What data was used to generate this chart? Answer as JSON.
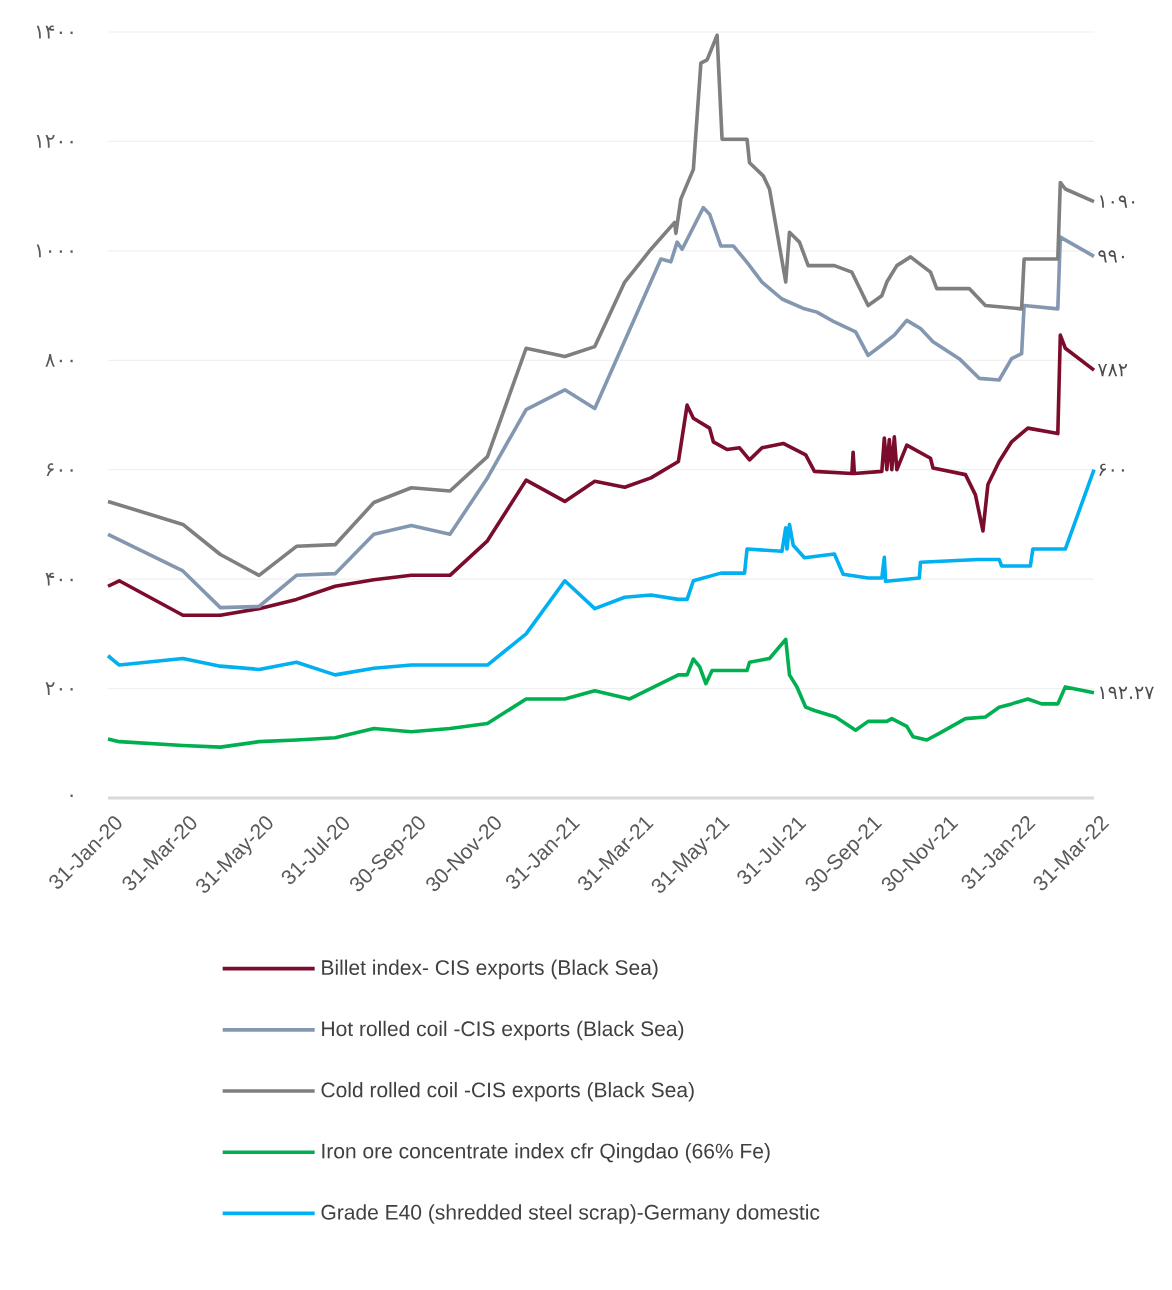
{
  "chart_data": {
    "type": "line",
    "xlim": [
      "2020-01-31",
      "2022-03-31"
    ],
    "ylim": [
      0,
      1400
    ],
    "xticks": [
      {
        "value": "2020-01-31",
        "label": "31-Jan-20"
      },
      {
        "value": "2020-03-31",
        "label": "31-Mar-20"
      },
      {
        "value": "2020-05-31",
        "label": "31-May-20"
      },
      {
        "value": "2020-07-31",
        "label": "31-Jul-20"
      },
      {
        "value": "2020-09-30",
        "label": "30-Sep-20"
      },
      {
        "value": "2020-11-30",
        "label": "30-Nov-20"
      },
      {
        "value": "2021-01-31",
        "label": "31-Jan-21"
      },
      {
        "value": "2021-03-31",
        "label": "31-Mar-21"
      },
      {
        "value": "2021-05-31",
        "label": "31-May-21"
      },
      {
        "value": "2021-07-31",
        "label": "31-Jul-21"
      },
      {
        "value": "2021-09-30",
        "label": "30-Sep-21"
      },
      {
        "value": "2021-11-30",
        "label": "30-Nov-21"
      },
      {
        "value": "2022-01-31",
        "label": "31-Jan-22"
      },
      {
        "value": "2022-03-31",
        "label": "31-Mar-22"
      }
    ],
    "yticks": [
      {
        "value": 0,
        "label": "۰"
      },
      {
        "value": 200,
        "label": "۲۰۰"
      },
      {
        "value": 400,
        "label": "۴۰۰"
      },
      {
        "value": 600,
        "label": "۶۰۰"
      },
      {
        "value": 800,
        "label": "۸۰۰"
      },
      {
        "value": 1000,
        "label": "۱۰۰۰"
      },
      {
        "value": 1200,
        "label": "۱۲۰۰"
      },
      {
        "value": 1400,
        "label": "۱۴۰۰"
      }
    ],
    "grid": "y",
    "legend": "bottom",
    "marker": "none",
    "line_style": "solid",
    "series": [
      {
        "name": "Billet index- CIS exports (Black Sea)",
        "color": "#7b0c2c",
        "x": [
          "2020-01-31",
          "2020-02-09",
          "2020-03-31",
          "2020-04-30",
          "2020-05-31",
          "2020-06-30",
          "2020-07-31",
          "2020-08-31",
          "2020-09-30",
          "2020-10-31",
          "2020-11-30",
          "2020-12-31",
          "2021-01-31",
          "2021-02-24",
          "2021-03-20",
          "2021-04-10",
          "2021-05-02",
          "2021-05-09",
          "2021-05-14",
          "2021-05-27",
          "2021-05-30",
          "2021-06-10",
          "2021-06-20",
          "2021-06-28",
          "2021-07-08",
          "2021-07-25",
          "2021-08-12",
          "2021-08-19",
          "2021-09-18",
          "2021-09-19",
          "2021-09-20",
          "2021-10-12",
          "2021-10-14",
          "2021-10-16",
          "2021-10-18",
          "2021-10-20",
          "2021-10-22",
          "2021-10-24",
          "2021-11-01",
          "2021-11-20",
          "2021-11-22",
          "2021-12-18",
          "2021-12-26",
          "2022-01-01",
          "2022-01-05",
          "2022-01-14",
          "2022-01-24",
          "2022-02-06",
          "2022-03-02",
          "2022-03-04",
          "2022-03-08",
          "2022-03-31"
        ],
        "values": [
          387,
          397,
          334,
          334,
          346,
          363,
          387,
          399,
          407,
          407,
          470,
          581,
          542,
          579,
          568,
          585,
          615,
          718,
          694,
          676,
          651,
          637,
          640,
          618,
          640,
          648,
          627,
          597,
          593,
          632,
          593,
          597,
          658,
          600,
          655,
          600,
          660,
          600,
          645,
          621,
          603,
          591,
          554,
          488,
          573,
          615,
          651,
          676,
          666,
          846,
          822,
          782
        ]
      },
      {
        "name": "Hot rolled coil -CIS exports (Black Sea)",
        "color": "#8497b0",
        "x": [
          "2020-01-31",
          "2020-03-31",
          "2020-04-30",
          "2020-05-31",
          "2020-06-30",
          "2020-07-31",
          "2020-08-31",
          "2020-09-30",
          "2020-10-31",
          "2020-11-30",
          "2020-12-31",
          "2021-01-31",
          "2021-02-24",
          "2021-04-18",
          "2021-04-26",
          "2021-05-01",
          "2021-05-05",
          "2021-05-22",
          "2021-05-27",
          "2021-06-05",
          "2021-06-15",
          "2021-06-26",
          "2021-07-08",
          "2021-07-24",
          "2021-08-11",
          "2021-08-21",
          "2021-09-04",
          "2021-09-21",
          "2021-10-01",
          "2021-10-12",
          "2021-10-22",
          "2021-11-01",
          "2021-11-12",
          "2021-11-22",
          "2021-12-13",
          "2021-12-29",
          "2022-01-14",
          "2022-01-24",
          "2022-02-01",
          "2022-02-03",
          "2022-03-02",
          "2022-03-04",
          "2022-03-31"
        ],
        "values": [
          482,
          415,
          348,
          350,
          407,
          410,
          482,
          498,
          482,
          585,
          710,
          746,
          712,
          985,
          980,
          1016,
          1003,
          1079,
          1067,
          1009,
          1009,
          979,
          943,
          912,
          894,
          888,
          870,
          852,
          809,
          828,
          846,
          873,
          858,
          834,
          803,
          767,
          764,
          803,
          812,
          900,
          894,
          1025,
          990
        ]
      },
      {
        "name": "Cold rolled coil -CIS exports (Black Sea)",
        "color": "#7f7f7f",
        "x": [
          "2020-01-31",
          "2020-03-31",
          "2020-04-30",
          "2020-05-31",
          "2020-06-30",
          "2020-07-31",
          "2020-08-31",
          "2020-09-30",
          "2020-10-31",
          "2020-11-30",
          "2020-12-31",
          "2021-01-31",
          "2021-02-24",
          "2021-03-20",
          "2021-04-10",
          "2021-04-29",
          "2021-04-30",
          "2021-05-04",
          "2021-05-14",
          "2021-05-20",
          "2021-05-25",
          "2021-06-02",
          "2021-06-06",
          "2021-06-26",
          "2021-06-28",
          "2021-07-09",
          "2021-07-14",
          "2021-07-27",
          "2021-07-30",
          "2021-08-07",
          "2021-08-14",
          "2021-09-04",
          "2021-09-18",
          "2021-10-01",
          "2021-10-12",
          "2021-10-16",
          "2021-10-24",
          "2021-11-04",
          "2021-11-20",
          "2021-11-25",
          "2021-12-21",
          "2022-01-03",
          "2022-02-01",
          "2022-02-03",
          "2022-03-02",
          "2022-03-04",
          "2022-03-08",
          "2022-03-31"
        ],
        "values": [
          542,
          500,
          445,
          407,
          460,
          463,
          540,
          567,
          561,
          624,
          822,
          807,
          825,
          943,
          1003,
          1052,
          1032,
          1095,
          1149,
          1343,
          1349,
          1394,
          1204,
          1204,
          1161,
          1137,
          1113,
          943,
          1034,
          1016,
          973,
          973,
          961,
          900,
          918,
          943,
          973,
          989,
          961,
          931,
          931,
          900,
          894,
          985,
          985,
          1125,
          1113,
          1090
        ]
      },
      {
        "name": "Iron ore concentrate index cfr Qingdao (66% Fe)",
        "color": "#00b050",
        "x": [
          "2020-01-31",
          "2020-02-09",
          "2020-03-31",
          "2020-04-30",
          "2020-05-31",
          "2020-06-30",
          "2020-07-31",
          "2020-08-31",
          "2020-09-30",
          "2020-10-31",
          "2020-11-30",
          "2020-12-31",
          "2021-01-31",
          "2021-02-24",
          "2021-03-24",
          "2021-05-02",
          "2021-05-09",
          "2021-05-14",
          "2021-05-19",
          "2021-05-24",
          "2021-05-29",
          "2021-06-26",
          "2021-06-28",
          "2021-07-14",
          "2021-07-27",
          "2021-07-30",
          "2021-08-05",
          "2021-08-12",
          "2021-08-19",
          "2021-09-05",
          "2021-09-21",
          "2021-10-01",
          "2021-10-16",
          "2021-10-20",
          "2021-11-01",
          "2021-11-06",
          "2021-11-17",
          "2021-11-27",
          "2021-12-18",
          "2022-01-03",
          "2022-01-14",
          "2022-01-24",
          "2022-02-06",
          "2022-02-17",
          "2022-03-02",
          "2022-03-08",
          "2022-03-31"
        ],
        "values": [
          108,
          103,
          96,
          93,
          103,
          106,
          110,
          127,
          121,
          127,
          136,
          181,
          181,
          196,
          181,
          225,
          225,
          254,
          240,
          209,
          233,
          233,
          248,
          255,
          290,
          225,
          203,
          166,
          160,
          148,
          124,
          140,
          140,
          145,
          131,
          112,
          106,
          118,
          145,
          148,
          166,
          172,
          181,
          172,
          172,
          203,
          192.27
        ]
      },
      {
        "name": "Grade E40 (shredded steel scrap)-Germany domestic",
        "color": "#00b0f0",
        "x": [
          "2020-01-31",
          "2020-02-09",
          "2020-03-31",
          "2020-04-30",
          "2020-05-31",
          "2020-06-30",
          "2020-07-31",
          "2020-08-31",
          "2020-09-30",
          "2020-10-31",
          "2020-11-30",
          "2020-12-31",
          "2021-01-31",
          "2021-02-24",
          "2021-03-20",
          "2021-04-10",
          "2021-05-02",
          "2021-05-09",
          "2021-05-14",
          "2021-06-05",
          "2021-06-24",
          "2021-06-26",
          "2021-07-24",
          "2021-07-27",
          "2021-07-28",
          "2021-07-30",
          "2021-08-02",
          "2021-08-11",
          "2021-09-04",
          "2021-09-11",
          "2021-10-01",
          "2021-10-12",
          "2021-10-14",
          "2021-10-15",
          "2021-10-20",
          "2021-11-11",
          "2021-11-12",
          "2021-12-28",
          "2022-01-14",
          "2022-01-16",
          "2022-02-08",
          "2022-02-10",
          "2022-03-08",
          "2022-03-31"
        ],
        "values": [
          260,
          243,
          255,
          241,
          235,
          248,
          225,
          237,
          243,
          243,
          243,
          300,
          397,
          346,
          367,
          371,
          363,
          363,
          397,
          411,
          411,
          455,
          451,
          494,
          455,
          500,
          462,
          439,
          446,
          409,
          402,
          402,
          440,
          396,
          397,
          402,
          431,
          436,
          436,
          424,
          424,
          455,
          455,
          600
        ]
      }
    ],
    "annotations": [
      {
        "text": "۱۰۹۰",
        "x": "2022-03-31",
        "y": 1090
      },
      {
        "text": "۹۹۰",
        "x": "2022-03-31",
        "y": 990
      },
      {
        "text": "۷۸۲",
        "x": "2022-03-31",
        "y": 782
      },
      {
        "text": "۶۰۰",
        "x": "2022-03-31",
        "y": 600
      },
      {
        "text": "۱۹۲.۲۷",
        "x": "2022-03-31",
        "y": 192.27
      }
    ]
  }
}
